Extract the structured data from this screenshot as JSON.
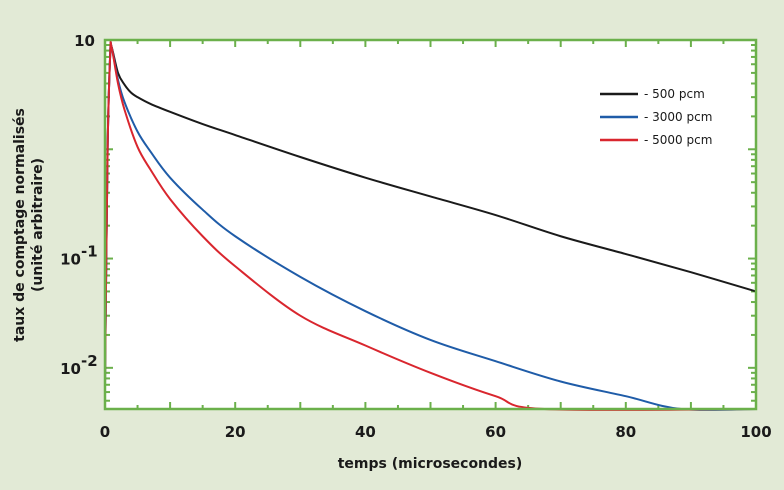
{
  "chart_data": {
    "type": "line",
    "xlabel": "temps (microsecondes)",
    "ylabel": [
      "taux de comptage normalisés",
      "(unité arbitraire)"
    ],
    "xlim": [
      0,
      100
    ],
    "ylim": [
      0.0042,
      10
    ],
    "y_scale": "log",
    "x_ticks": [
      "0",
      "20",
      "40",
      "60",
      "80",
      "100"
    ],
    "y_ticks": [
      {
        "value": 10,
        "base": "10",
        "exp": ""
      },
      {
        "value": 0.1,
        "base": "10",
        "exp": "-1"
      },
      {
        "value": 0.01,
        "base": "10",
        "exp": "-2"
      }
    ],
    "grid": false,
    "legend_position": "top-right",
    "frame_color": "#6bb04b",
    "series": [
      {
        "name": "-   500 pcm",
        "color": "#1a1a1a",
        "x": [
          0,
          0.4,
          0.8,
          1,
          2,
          3,
          4,
          5,
          7,
          10,
          15,
          20,
          30,
          40,
          50,
          60,
          70,
          80,
          90,
          100
        ],
        "y": [
          0.008,
          1,
          7.5,
          8.7,
          5.0,
          3.9,
          3.3,
          3.0,
          2.6,
          2.2,
          1.7,
          1.35,
          0.85,
          0.55,
          0.37,
          0.25,
          0.16,
          0.11,
          0.075,
          0.05
        ]
      },
      {
        "name": "- 3000 pcm",
        "color": "#1f5ca8",
        "x": [
          0,
          0.4,
          0.8,
          1,
          2,
          3,
          5,
          7,
          10,
          15,
          20,
          30,
          40,
          50,
          60,
          70,
          80,
          88.5,
          100
        ],
        "y": [
          0.007,
          1,
          7.5,
          8.7,
          4.3,
          2.7,
          1.45,
          0.95,
          0.55,
          0.28,
          0.16,
          0.068,
          0.033,
          0.018,
          0.0115,
          0.0075,
          0.0055,
          0.0042,
          0.0042
        ]
      },
      {
        "name": "- 5000 pcm",
        "color": "#d9262e",
        "x": [
          0,
          0.4,
          0.8,
          1,
          2,
          3,
          5,
          7,
          10,
          15,
          20,
          30,
          40,
          50,
          60,
          67.5,
          100
        ],
        "y": [
          0.007,
          1,
          7.5,
          8.7,
          4.0,
          2.3,
          1.05,
          0.65,
          0.35,
          0.16,
          0.085,
          0.03,
          0.016,
          0.009,
          0.0055,
          0.0042,
          0.0042
        ]
      }
    ]
  }
}
